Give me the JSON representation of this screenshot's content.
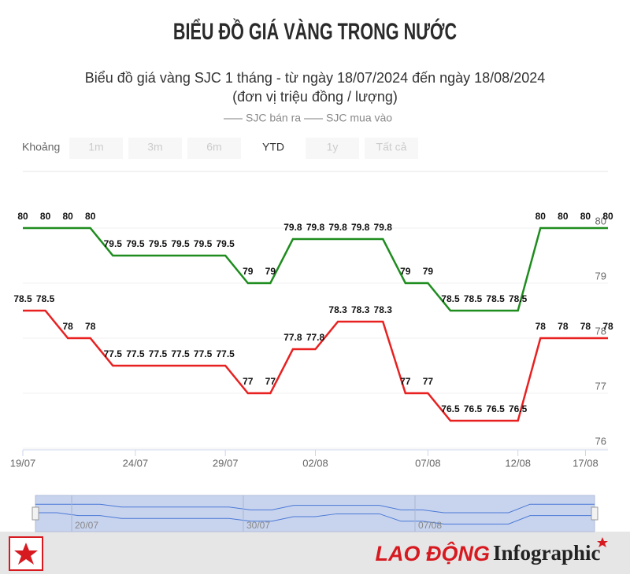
{
  "header": {
    "title": "BIỂU ĐỒ GIÁ VÀNG TRONG NƯỚC"
  },
  "chart_data": {
    "type": "line",
    "title": "Biểu đồ giá vàng SJC 1 tháng - từ ngày 18/07/2024 đến ngày 18/08/2024",
    "subtitle": "(đơn vị triệu đồng / lượng)",
    "categories": [
      "19/07",
      null,
      null,
      null,
      null,
      "24/07",
      null,
      null,
      null,
      "29/07",
      null,
      null,
      null,
      "02/08",
      null,
      null,
      null,
      null,
      "07/08",
      null,
      null,
      null,
      "12/08",
      null,
      null,
      "17/08",
      null
    ],
    "series": [
      {
        "name": "SJC bán ra",
        "color": "#1e8c1e",
        "values": [
          80,
          80,
          80,
          80,
          79.5,
          79.5,
          79.5,
          79.5,
          79.5,
          79.5,
          79,
          79,
          79.8,
          79.8,
          79.8,
          79.8,
          79.8,
          79,
          79,
          78.5,
          78.5,
          78.5,
          78.5,
          80,
          80,
          80,
          80
        ]
      },
      {
        "name": "SJC mua vào",
        "color": "#e82020",
        "values": [
          78.5,
          78.5,
          78,
          78,
          77.5,
          77.5,
          77.5,
          77.5,
          77.5,
          77.5,
          77,
          77,
          77.8,
          77.8,
          78.3,
          78.3,
          78.3,
          77,
          77,
          76.5,
          76.5,
          76.5,
          76.5,
          78,
          78,
          78,
          78
        ]
      }
    ],
    "ylim": [
      76,
      81
    ],
    "yticks": [
      76,
      77,
      78,
      79,
      80
    ],
    "range_selector": {
      "label": "Khoảng",
      "buttons": [
        "1m",
        "3m",
        "6m",
        "YTD",
        "1y",
        "Tất cả"
      ],
      "selected": 3
    },
    "navigator": {
      "labels": [
        "20/07",
        "30/07",
        "07/08"
      ]
    }
  },
  "footer": {
    "brand": "LAO ĐỘNG",
    "section": "Infographic"
  }
}
